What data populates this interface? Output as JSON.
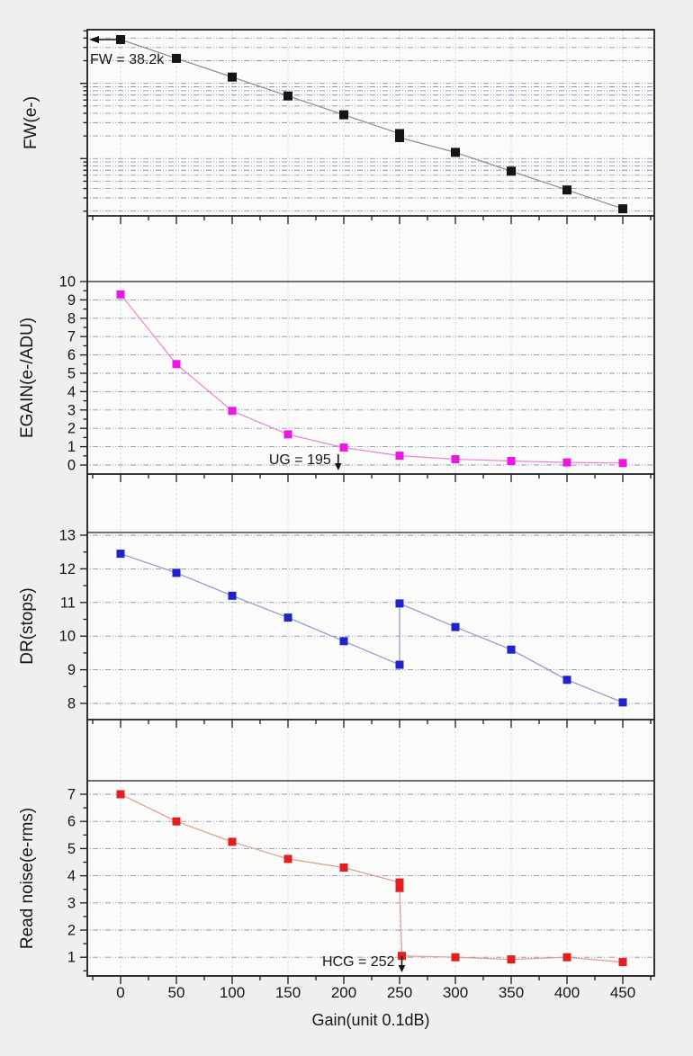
{
  "figure": {
    "xlabel": "Gain(unit 0.1dB)",
    "x_tick_labels": [
      "0",
      "50",
      "100",
      "150",
      "200",
      "250",
      "300",
      "350",
      "400",
      "450"
    ],
    "x_ticks": [
      0,
      50,
      100,
      150,
      200,
      250,
      300,
      350,
      400,
      450
    ],
    "x_minor_step": 25,
    "background": "#f0efee",
    "plot_background": "#fbfbf9",
    "frame_color": "#1c1c1c",
    "grid": {
      "vertical_color": "#bfece9",
      "horizontal_color": "#8e91b8"
    }
  },
  "chart_data": [
    {
      "type": "line",
      "name": "fw",
      "ylabel": "FW(e-)",
      "yscale": "log",
      "ylim": [
        173,
        51700
      ],
      "marker_color": "#151515",
      "line_color": "#8c8c8c",
      "marker_size": 10,
      "x": [
        0,
        50,
        100,
        150,
        200,
        250,
        250,
        300,
        350,
        400,
        450
      ],
      "y": [
        38200,
        21500,
        12100,
        6800,
        3820,
        2150,
        1900,
        1210,
        680,
        382,
        215
      ],
      "ytick_major": [
        1000,
        10000
      ],
      "ytick_minor": [
        200,
        300,
        400,
        500,
        600,
        700,
        800,
        900,
        2000,
        3000,
        4000,
        5000,
        6000,
        7000,
        8000,
        9000,
        20000,
        30000,
        40000,
        50000
      ],
      "ytick_labels": [],
      "gridlines": [
        200,
        300,
        400,
        500,
        600,
        700,
        800,
        900,
        1000,
        2000,
        3000,
        4000,
        5000,
        6000,
        7000,
        8000,
        9000,
        10000,
        20000,
        30000,
        40000
      ],
      "annotation": {
        "text": "FW = 38.2k",
        "arrow": "left"
      }
    },
    {
      "type": "line",
      "name": "egain",
      "ylabel": "EGAIN(e-/ADU)",
      "yscale": "linear",
      "ylim": [
        0,
        10
      ],
      "marker_color": "#ec17e2",
      "line_color": "#e884d6",
      "marker_size": 9,
      "x": [
        0,
        50,
        100,
        150,
        200,
        250,
        300,
        350,
        400,
        450
      ],
      "y": [
        9.3,
        5.5,
        2.95,
        1.67,
        0.95,
        0.51,
        0.32,
        0.22,
        0.14,
        0.11
      ],
      "ytick_major": [
        0,
        1,
        2,
        3,
        4,
        5,
        6,
        7,
        8,
        9,
        10
      ],
      "ytick_minor": [
        0.5,
        1.5,
        2.5,
        3.5,
        4.5,
        5.5,
        6.5,
        7.5,
        8.5,
        9.5
      ],
      "ytick_labels": [
        "0",
        "1",
        "2",
        "3",
        "4",
        "5",
        "6",
        "7",
        "8",
        "9",
        "10"
      ],
      "gridlines": [
        0,
        1,
        2,
        3,
        4,
        5,
        6,
        7,
        8,
        9
      ],
      "annotation": {
        "text": "UG = 195",
        "arrow": "down",
        "at_x": 195
      }
    },
    {
      "type": "line",
      "name": "dr",
      "ylabel": "DR(stops)",
      "yscale": "linear",
      "ylim": [
        8,
        13
      ],
      "marker_color": "#2121cd",
      "line_color": "#9296c8",
      "marker_size": 9,
      "x": [
        0,
        50,
        100,
        150,
        200,
        250,
        250,
        300,
        350,
        400,
        450
      ],
      "y": [
        12.45,
        11.88,
        11.2,
        10.55,
        9.85,
        9.15,
        10.97,
        10.27,
        9.6,
        8.7,
        8.03
      ],
      "ytick_major": [
        8,
        9,
        10,
        11,
        12,
        13
      ],
      "ytick_minor": [
        8.5,
        9.5,
        10.5,
        11.5,
        12.5
      ],
      "ytick_labels": [
        "8",
        "9",
        "10",
        "11",
        "12",
        "13"
      ],
      "gridlines": [
        8,
        9,
        10,
        11,
        12,
        13
      ],
      "annotation": null
    },
    {
      "type": "line",
      "name": "read-noise",
      "ylabel": "Read noise(e-rms)",
      "yscale": "linear",
      "ylim": [
        1,
        7
      ],
      "marker_color": "#e01f1f",
      "line_color": "#de9c94",
      "marker_size": 9,
      "x": [
        0,
        50,
        100,
        150,
        200,
        250,
        250,
        252,
        300,
        350,
        400,
        450
      ],
      "y": [
        7.0,
        6.0,
        5.25,
        4.62,
        4.3,
        3.75,
        3.55,
        1.05,
        1.0,
        0.92,
        1.0,
        0.82
      ],
      "ytick_major": [
        1,
        2,
        3,
        4,
        5,
        6,
        7
      ],
      "ytick_minor": [
        0.5,
        1.5,
        2.5,
        3.5,
        4.5,
        5.5,
        6.5
      ],
      "ytick_labels": [
        "1",
        "2",
        "3",
        "4",
        "5",
        "6",
        "7"
      ],
      "gridlines": [
        1,
        2,
        3,
        4,
        5,
        6,
        7
      ],
      "annotation": {
        "text": "HCG = 252",
        "arrow": "down",
        "at_x": 252
      }
    }
  ]
}
